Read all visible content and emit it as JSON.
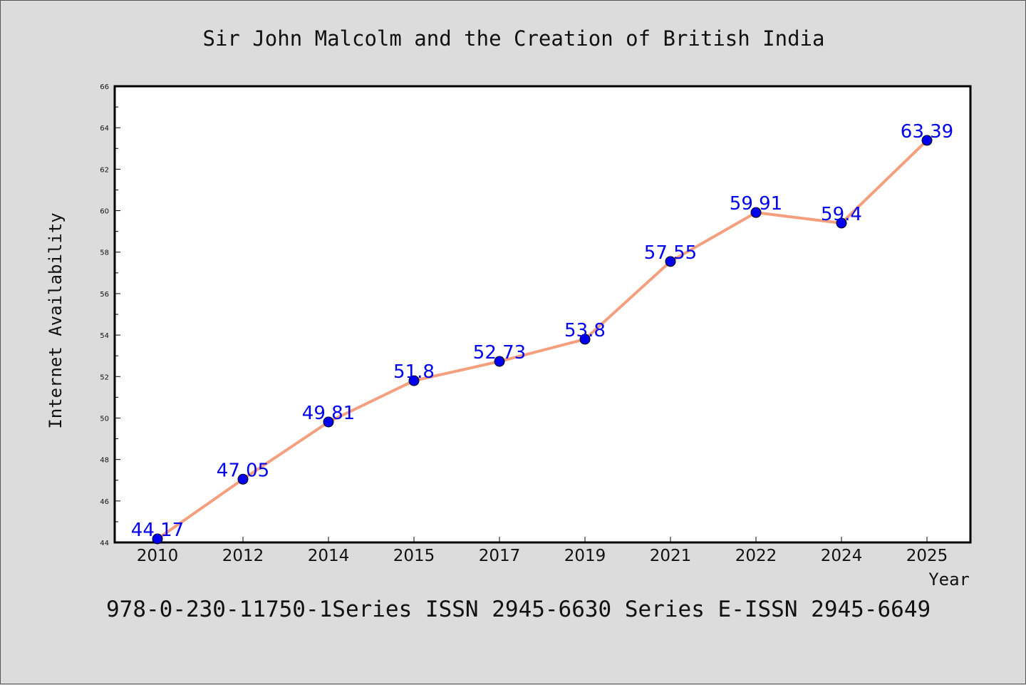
{
  "chart_data": {
    "type": "line",
    "title": "Sir John Malcolm and the Creation of British India",
    "xlabel": "Year",
    "ylabel": "Internet Availability",
    "footer": "978-0-230-11750-1Series ISSN 2945-6630 Series E-ISSN 2945-6649",
    "categories": [
      "2010",
      "2012",
      "2014",
      "2015",
      "2017",
      "2019",
      "2021",
      "2022",
      "2024",
      "2025"
    ],
    "series": [
      {
        "values": [
          44.17,
          47.05,
          49.81,
          51.8,
          52.73,
          53.8,
          57.55,
          59.91,
          59.4,
          63.39
        ],
        "labels": [
          "44.17",
          "47.05",
          "49.81",
          "51.8",
          "52.73",
          "53.8",
          "57.55",
          "59.91",
          "59.4",
          "63.39"
        ]
      }
    ],
    "ylim": [
      44,
      66
    ],
    "yticks": [
      "44",
      "46",
      "48",
      "50",
      "52",
      "54",
      "56",
      "58",
      "60",
      "62",
      "64",
      "66"
    ],
    "grid": false,
    "colors": {
      "line": "#f4a07e",
      "marker": "#0000ee",
      "label": "#0000ee",
      "plot_background": "#ffffff",
      "page_background": "#dcdcdc"
    }
  }
}
